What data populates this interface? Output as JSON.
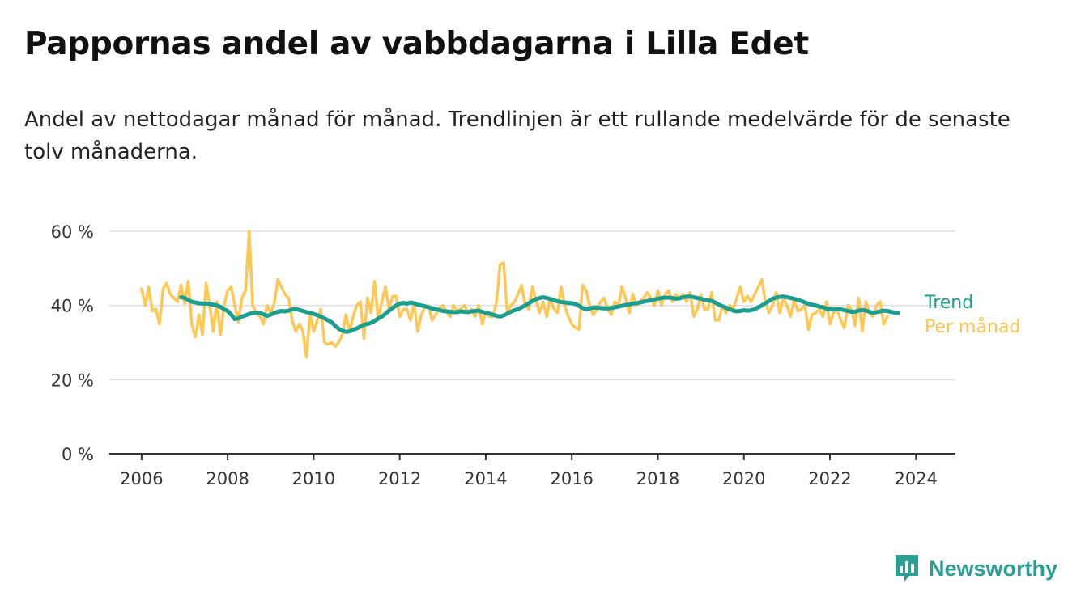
{
  "header": {
    "title": "Pappornas andel av vabbdagarna i Lilla Edet",
    "subtitle": "Andel av nettodagar månad för månad. Trendlinjen är ett rullande medelvärde för de senaste tolv månaderna."
  },
  "brand": {
    "name": "Newsworthy",
    "icon": "bar-chart-logo-icon"
  },
  "colors": {
    "trend": "#1a9e90",
    "monthly": "#ffc44d",
    "grid": "#dddddd",
    "axis": "#333333"
  },
  "chart_data": {
    "type": "line",
    "title": "Pappornas andel av vabbdagarna i Lilla Edet",
    "subtitle": "Andel av nettodagar månad för månad. Trendlinjen är ett rullande medelvärde för de senaste tolv månaderna.",
    "xlabel": "",
    "ylabel": "",
    "ylim": [
      0,
      60
    ],
    "yticks": [
      0,
      20,
      40,
      60
    ],
    "ytick_labels": [
      "0 %",
      "20 %",
      "40 %",
      "60 %"
    ],
    "xlim": [
      "2005-04",
      "2024-12"
    ],
    "xticks": [
      "2006",
      "2008",
      "2010",
      "2012",
      "2014",
      "2016",
      "2018",
      "2020",
      "2022",
      "2024"
    ],
    "grid": true,
    "legend": "right",
    "series": [
      {
        "name": "Per månad",
        "color": "#ffc44d",
        "start": "2006-01",
        "values": [
          44.5,
          40,
          45,
          38.5,
          39,
          35,
          44.5,
          46,
          43,
          42,
          41,
          45.5,
          40.5,
          46.5,
          35,
          31.5,
          37.5,
          32,
          46,
          40,
          33,
          41,
          32,
          40,
          44,
          45,
          40,
          35.5,
          42,
          44,
          60,
          40,
          38,
          37,
          35,
          40,
          38,
          40.5,
          47,
          45,
          43,
          42,
          36,
          33,
          35,
          33,
          26,
          38,
          33,
          36,
          39,
          30,
          29.5,
          30,
          29,
          30,
          32,
          37.5,
          33,
          37,
          40,
          41,
          31,
          42,
          38,
          46.5,
          36,
          41,
          45,
          39,
          42.5,
          42.5,
          37,
          39,
          39,
          36,
          40.5,
          33,
          37.5,
          39.5,
          40,
          36,
          37.5,
          39,
          40,
          38.5,
          37,
          40,
          38.5,
          39,
          40,
          38,
          39,
          37,
          40,
          35,
          38,
          37,
          37,
          41,
          51,
          51.5,
          38,
          40,
          41,
          43,
          45.5,
          40,
          39,
          45,
          41.5,
          38,
          41,
          37,
          42,
          39,
          38,
          45,
          40,
          37,
          35,
          34,
          33.5,
          45.5,
          44,
          40,
          37.5,
          39,
          41,
          42,
          39,
          37.5,
          41,
          40,
          45,
          42,
          38,
          43,
          40,
          41,
          42,
          43.5,
          42,
          40,
          44,
          40,
          43,
          44,
          41,
          43,
          42,
          43,
          41,
          43.5,
          37,
          39,
          43,
          39,
          39,
          43.5,
          36,
          36,
          40,
          38,
          40,
          39,
          42,
          45,
          41,
          42.5,
          41,
          43,
          45,
          47,
          41,
          38,
          40,
          43.5,
          38,
          42,
          40,
          37,
          41.5,
          38.5,
          39,
          40,
          33.5,
          37.5,
          38,
          39,
          37,
          41,
          35,
          38,
          39,
          36,
          34,
          40,
          39,
          34.5,
          42,
          33,
          41,
          38,
          37,
          40,
          41,
          35,
          37
        ]
      },
      {
        "name": "Trend",
        "color": "#1a9e90",
        "start": "2006-12",
        "values": [
          42.2,
          42,
          41.5,
          41,
          40.8,
          40.6,
          40.5,
          40.5,
          40.4,
          40.2,
          40,
          39.6,
          39,
          38.5,
          37.5,
          36.3,
          36.5,
          37,
          37.3,
          37.7,
          38,
          38,
          38,
          37.6,
          37.2,
          37.5,
          38,
          38.3,
          38.5,
          38.4,
          38.6,
          38.9,
          39,
          38.8,
          38.5,
          38.2,
          38,
          37.7,
          37.4,
          37,
          36.5,
          36,
          35.5,
          34.5,
          33.7,
          33.2,
          32.9,
          33,
          33.5,
          33.8,
          34.3,
          34.8,
          35,
          35.3,
          35.8,
          36.5,
          37,
          37.8,
          38.6,
          39.3,
          40,
          40.5,
          40.7,
          40.5,
          40.8,
          40.6,
          40.2,
          40,
          39.8,
          39.5,
          39.2,
          39,
          38.8,
          38.5,
          38.4,
          38.3,
          38.2,
          38.2,
          38.4,
          38.3,
          38.2,
          38.4,
          38.5,
          38.6,
          38.3,
          38,
          37.8,
          37.5,
          37.2,
          37,
          37.3,
          37.8,
          38.3,
          38.7,
          39,
          39.5,
          40,
          40.6,
          41.2,
          41.7,
          42,
          42.2,
          42,
          41.7,
          41.4,
          41.1,
          40.9,
          40.8,
          40.7,
          40.6,
          40.4,
          39.9,
          39.3,
          39,
          39.2,
          39.4,
          39.4,
          39.3,
          39.2,
          39.2,
          39.3,
          39.5,
          39.7,
          39.9,
          40.1,
          40.3,
          40.5,
          40.6,
          40.8,
          41,
          41.2,
          41.4,
          41.6,
          41.8,
          42,
          42.1,
          42.1,
          42,
          41.8,
          41.9,
          42.2,
          42.4,
          42.4,
          42.2,
          42,
          41.8,
          41.5,
          41.4,
          41.2,
          40.8,
          40.2,
          39.8,
          39.4,
          39,
          38.6,
          38.4,
          38.5,
          38.7,
          38.6,
          38.7,
          39,
          39.5,
          40,
          40.6,
          41.2,
          41.8,
          42.1,
          42.3,
          42.4,
          42.2,
          42,
          41.8,
          41.5,
          41.2,
          40.8,
          40.4,
          40.2,
          40,
          39.7,
          39.5,
          39.2,
          39,
          38.9,
          39,
          39,
          38.7,
          38.5,
          38.3,
          38.3,
          38.6,
          38.8,
          38.6,
          38.3,
          38,
          38.2,
          38.4,
          38.6,
          38.5,
          38.3,
          38.1,
          38
        ]
      }
    ]
  }
}
